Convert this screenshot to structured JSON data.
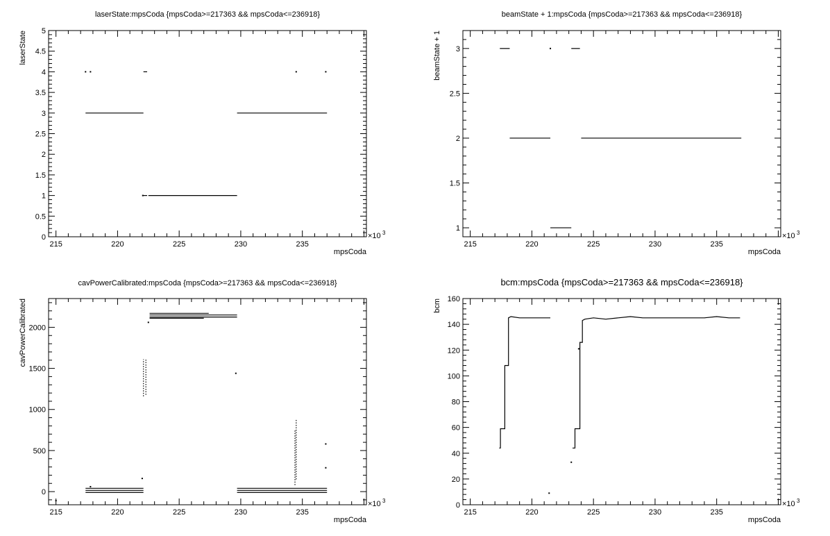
{
  "chart_data": [
    {
      "type": "scatter",
      "title": "laserState:mpsCoda {mpsCoda>=217363 && mpsCoda<=236918}",
      "xlabel": "mpsCoda",
      "ylabel": "laserState",
      "x_multiplier": "×10",
      "x_multiplier_exp": "3",
      "xlim": [
        214.4,
        240.2
      ],
      "ylim": [
        0,
        5
      ],
      "xticks": [
        215,
        220,
        225,
        230,
        235
      ],
      "xtick_labels": [
        "215",
        "220",
        "225",
        "230",
        "235"
      ],
      "yticks": [
        0,
        0.5,
        1,
        1.5,
        2,
        2.5,
        3,
        3.5,
        4,
        4.5,
        5
      ],
      "ytick_labels": [
        "0",
        "0.5",
        "1",
        "1.5",
        "2",
        "2.5",
        "3",
        "3.5",
        "4",
        "4.5",
        "5"
      ],
      "segments": [
        {
          "x": [
            217.4,
            222.1
          ],
          "y": 3
        },
        {
          "x": [
            229.7,
            237.0
          ],
          "y": 3
        },
        {
          "x": [
            222.5,
            229.7
          ],
          "y": 1
        },
        {
          "x": [
            222.0,
            222.4
          ],
          "y": 1
        },
        {
          "x": [
            222.1,
            222.4
          ],
          "y": 4
        }
      ],
      "points": [
        [
          217.4,
          4
        ],
        [
          217.8,
          4
        ],
        [
          222.05,
          1
        ],
        [
          234.5,
          4
        ],
        [
          236.9,
          4
        ]
      ]
    },
    {
      "type": "scatter",
      "title": "beamState + 1:mpsCoda {mpsCoda>=217363 && mpsCoda<=236918}",
      "xlabel": "mpsCoda",
      "ylabel": "beamState + 1",
      "x_multiplier": "×10",
      "x_multiplier_exp": "3",
      "xlim": [
        214.4,
        240.2
      ],
      "ylim": [
        0.9,
        3.2
      ],
      "xticks": [
        215,
        220,
        225,
        230,
        235
      ],
      "xtick_labels": [
        "215",
        "220",
        "225",
        "230",
        "235"
      ],
      "yticks": [
        1,
        1.5,
        2,
        2.5,
        3
      ],
      "ytick_labels": [
        "1",
        "1.5",
        "2",
        "2.5",
        "3"
      ],
      "segments": [
        {
          "x": [
            217.4,
            218.2
          ],
          "y": 3
        },
        {
          "x": [
            223.2,
            223.9
          ],
          "y": 3
        },
        {
          "x": [
            218.2,
            221.5
          ],
          "y": 2
        },
        {
          "x": [
            224.0,
            237.0
          ],
          "y": 2
        },
        {
          "x": [
            221.5,
            223.2
          ],
          "y": 1
        }
      ],
      "points": [
        [
          221.5,
          3
        ]
      ]
    },
    {
      "type": "scatter",
      "title": "cavPowerCalibrated:mpsCoda {mpsCoda>=217363 && mpsCoda<=236918}",
      "xlabel": "mpsCoda",
      "ylabel": "cavPowerCalibrated",
      "x_multiplier": "×10",
      "x_multiplier_exp": "3",
      "xlim": [
        214.4,
        240.2
      ],
      "ylim": [
        -160,
        2350
      ],
      "xticks": [
        215,
        220,
        225,
        230,
        235
      ],
      "xtick_labels": [
        "215",
        "220",
        "225",
        "230",
        "235"
      ],
      "yticks": [
        0,
        500,
        1000,
        1500,
        2000
      ],
      "ytick_labels": [
        "0",
        "500",
        "1000",
        "1500",
        "2000"
      ],
      "segments": [
        {
          "x": [
            217.4,
            222.1
          ],
          "y": 40
        },
        {
          "x": [
            217.4,
            222.1
          ],
          "y": 15
        },
        {
          "x": [
            217.4,
            222.1
          ],
          "y": -10
        },
        {
          "x": [
            229.7,
            237.0
          ],
          "y": 40
        },
        {
          "x": [
            229.7,
            237.0
          ],
          "y": 15
        },
        {
          "x": [
            229.7,
            237.0
          ],
          "y": -10
        },
        {
          "x": [
            222.6,
            227.4
          ],
          "y": 2170
        },
        {
          "x": [
            222.6,
            229.7
          ],
          "y": 2150
        },
        {
          "x": [
            222.6,
            229.7
          ],
          "y": 2125
        },
        {
          "x": [
            222.6,
            227.0
          ],
          "y": 2110
        }
      ],
      "vertical_clusters": [
        {
          "x": 222.1,
          "ymin": 1160,
          "ymax": 1610
        },
        {
          "x": 222.3,
          "ymin": 1180,
          "ymax": 1620
        },
        {
          "x": 234.4,
          "ymin": 80,
          "ymax": 760
        },
        {
          "x": 234.5,
          "ymin": 150,
          "ymax": 880
        }
      ],
      "points": [
        [
          215.0,
          -110
        ],
        [
          222.0,
          160
        ],
        [
          222.5,
          2060
        ],
        [
          229.6,
          1440
        ],
        [
          236.9,
          580
        ],
        [
          236.9,
          290
        ],
        [
          217.8,
          60
        ]
      ]
    },
    {
      "type": "line",
      "title": "bcm:mpsCoda {mpsCoda>=217363 && mpsCoda<=236918}",
      "xlabel": "mpsCoda",
      "ylabel": "bcm",
      "x_multiplier": "×10",
      "x_multiplier_exp": "3",
      "xlim": [
        214.4,
        240.2
      ],
      "ylim": [
        0,
        160
      ],
      "xticks": [
        215,
        220,
        225,
        230,
        235
      ],
      "xtick_labels": [
        "215",
        "220",
        "225",
        "230",
        "235"
      ],
      "yticks": [
        0,
        20,
        40,
        60,
        80,
        100,
        120,
        140,
        160
      ],
      "ytick_labels": [
        "0",
        "20",
        "40",
        "60",
        "80",
        "100",
        "120",
        "140",
        "160"
      ],
      "series": [
        {
          "x": [
            217.35,
            217.45,
            217.45,
            217.8,
            217.8,
            218.1,
            218.1,
            218.3,
            218.3,
            219.0,
            219.6,
            220.2,
            220.8,
            221.5
          ],
          "y": [
            44,
            44,
            59,
            59,
            108,
            108,
            145,
            146,
            146,
            145,
            145,
            145,
            145,
            145
          ]
        },
        {
          "x": [
            223.3,
            223.5,
            223.5,
            223.9,
            223.9,
            224.1,
            224.1,
            224.3,
            224.3,
            225.0,
            226.0,
            227.0,
            228.0,
            229.0,
            230.0,
            231.0,
            232.0,
            233.0,
            234.0,
            235.0,
            236.0,
            236.9
          ],
          "y": [
            44,
            44,
            59,
            59,
            126,
            126,
            143,
            144,
            144,
            145,
            144,
            145,
            146,
            145,
            145,
            145,
            145,
            145,
            145,
            146,
            145,
            145
          ]
        }
      ],
      "points": [
        [
          221.4,
          9
        ],
        [
          223.2,
          33
        ],
        [
          223.8,
          121
        ]
      ]
    }
  ]
}
